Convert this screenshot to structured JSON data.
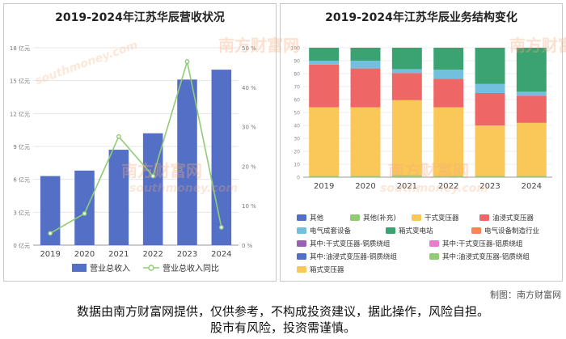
{
  "credit": "制图：南方财富网",
  "disclaimer": {
    "line1": "数据由南方财富网提供，仅供参考，不构成投资建议，据此操作，风险自担。",
    "line2": "股市有风险，投资需谨慎。"
  },
  "watermark": {
    "cn": "南方财富网",
    "en": "southmoney.com"
  },
  "chart_data": [
    {
      "type": "bar+line",
      "title": "2019-2024年江苏华辰营收状况",
      "categories": [
        "2019",
        "2020",
        "2021",
        "2022",
        "2023",
        "2024"
      ],
      "y_left": {
        "ticks": [
          "0 亿元",
          "3 亿元",
          "6 亿元",
          "9 亿元",
          "12 亿元",
          "15 亿元",
          "18 亿元"
        ],
        "ylim": [
          0,
          18
        ]
      },
      "y_right": {
        "ticks": [
          "0 %",
          "10 %",
          "20 %",
          "30 %",
          "40 %",
          "50 %"
        ],
        "ylim": [
          0,
          50
        ]
      },
      "series": [
        {
          "name": "营业总收入",
          "kind": "bar",
          "axis": "left",
          "color": "#5470c6",
          "values": [
            6.3,
            6.8,
            8.7,
            10.2,
            15.1,
            16.0
          ]
        },
        {
          "name": "营业总收入同比",
          "kind": "line",
          "axis": "right",
          "color": "#91cc75",
          "values": [
            3.0,
            8.0,
            27.5,
            17.5,
            46.5,
            4.5
          ]
        }
      ],
      "legend_position": "bottom"
    },
    {
      "type": "stacked-bar-percent",
      "title": "2019-2024年江苏华辰业务结构变化",
      "categories": [
        "2019",
        "2020",
        "2021",
        "2022",
        "2023",
        "2024"
      ],
      "y_axis": {
        "ticks": [
          "0",
          "10",
          "20",
          "30",
          "40",
          "50",
          "60",
          "70",
          "80",
          "90",
          "100"
        ],
        "ylim": [
          0,
          100
        ]
      },
      "series": [
        {
          "name": "其他",
          "color": "#5470c6",
          "values": [
            0,
            0,
            0,
            0,
            0,
            0
          ]
        },
        {
          "name": "其他(补充)",
          "color": "#91cc75",
          "values": [
            1,
            1,
            1.5,
            1,
            1,
            1
          ]
        },
        {
          "name": "干式变压器",
          "color": "#fac858",
          "values": [
            53,
            53,
            58,
            53,
            39,
            41
          ]
        },
        {
          "name": "油浸式变压器",
          "color": "#ee6666",
          "values": [
            33,
            30,
            21,
            22,
            25,
            21
          ]
        },
        {
          "name": "电气成套设备",
          "color": "#73c0de",
          "values": [
            3,
            6,
            3,
            7,
            7,
            3
          ]
        },
        {
          "name": "箱式变电站",
          "color": "#3ba272",
          "values": [
            10,
            10,
            16.5,
            17,
            28,
            34
          ]
        },
        {
          "name": "电气设备制造行业",
          "color": "#fc8452",
          "values": [
            0,
            0,
            0,
            0,
            0,
            0
          ]
        },
        {
          "name": "其中:干式变压器-铜质绕组",
          "color": "#9a60b4",
          "values": [
            0,
            0,
            0,
            0,
            0,
            0
          ]
        },
        {
          "name": "其中:干式变压器-铝质绕组",
          "color": "#ea7ccc",
          "values": [
            0,
            0,
            0,
            0,
            0,
            0
          ]
        },
        {
          "name": "其中:油浸式变压器-铜质绕组",
          "color": "#5470c6",
          "values": [
            0,
            0,
            0,
            0,
            0,
            0
          ]
        },
        {
          "name": "其中:油浸式变压器-铝质绕组",
          "color": "#91cc75",
          "values": [
            0,
            0,
            0,
            0,
            0,
            0
          ]
        },
        {
          "name": "箱式变压器",
          "color": "#fac858",
          "values": [
            0,
            0,
            0,
            0,
            0,
            0
          ]
        }
      ],
      "legend_position": "bottom"
    }
  ]
}
